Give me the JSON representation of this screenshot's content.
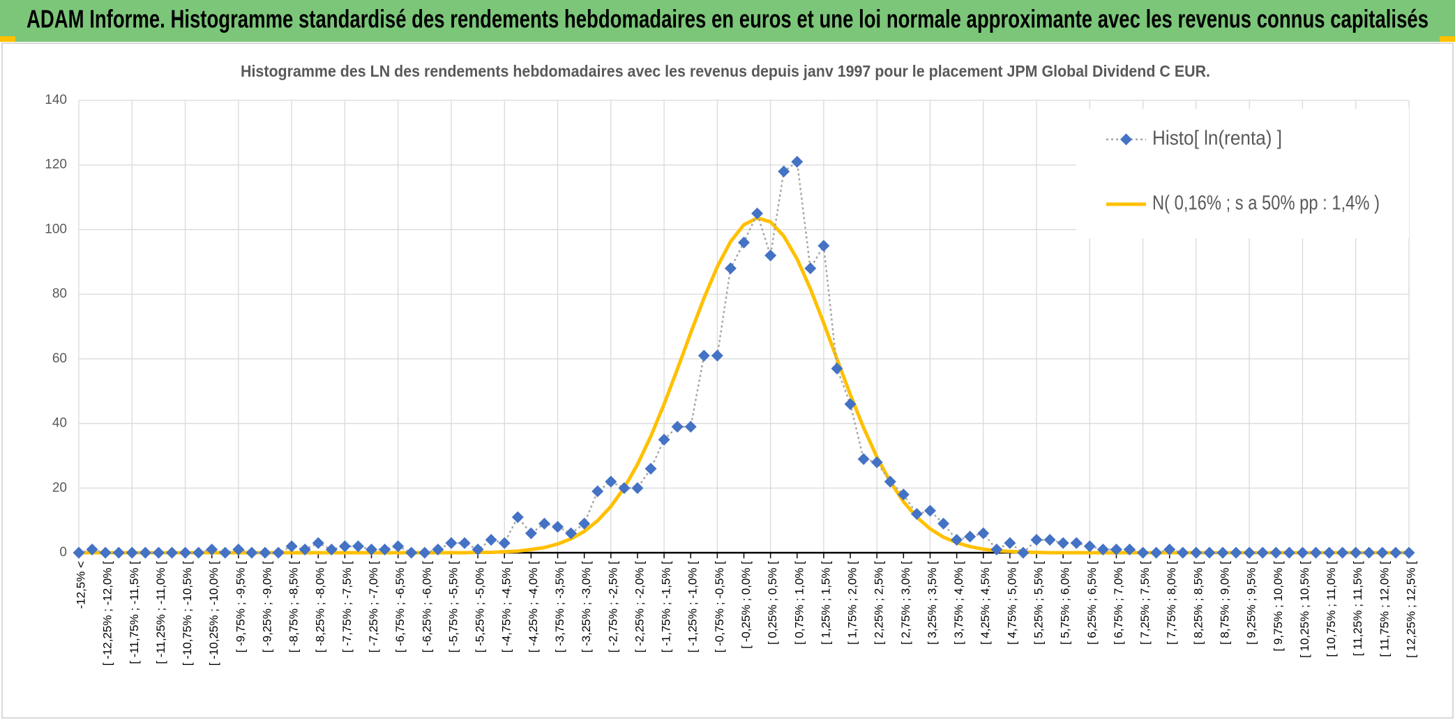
{
  "header": {
    "title": "ADAM Informe. Histogramme standardisé des rendements hebdomadaires en euros et une loi normale approximante avec les revenus connus capitalisés"
  },
  "chart_data": {
    "type": "line",
    "title": "Histogramme des LN des rendements hebdomadaires avec les revenus depuis janv 1997 pour le placement JPM Global Dividend C EUR.",
    "categories": [
      "-12,5% <",
      null,
      "[ -12,25% ; -12,0% [",
      null,
      "[ -11,75% ; -11,5% [",
      null,
      "[ -11,25% ; -11,0% [",
      null,
      "[ -10,75% ; -10,5% [",
      null,
      "[ -10,25% ; -10,0% [",
      null,
      "[ -9,75% ; -9,5% [",
      null,
      "[ -9,25% ; -9,0% [",
      null,
      "[ -8,75% ; -8,5% [",
      null,
      "[ -8,25% ; -8,0% [",
      null,
      "[ -7,75% ; -7,5% [",
      null,
      "[ -7,25% ; -7,0% [",
      null,
      "[ -6,75% ; -6,5% [",
      null,
      "[ -6,25% ; -6,0% [",
      null,
      "[ -5,75% ; -5,5% [",
      null,
      "[ -5,25% ; -5,0% [",
      null,
      "[ -4,75% ; -4,5% [",
      null,
      "[ -4,25% ; -4,0% [",
      null,
      "[ -3,75% ; -3,5% [",
      null,
      "[ -3,25% ; -3,0% [",
      null,
      "[ -2,75% ; -2,5% [",
      null,
      "[ -2,25% ; -2,0% [",
      null,
      "[ -1,75% ; -1,5% [",
      null,
      "[ -1,25% ; -1,0% [",
      null,
      "[ -0,75% ; -0,5% [",
      null,
      "[ -0,25% ; 0,0% [",
      null,
      "[ 0,25% ; 0,5% [",
      null,
      "[ 0,75% ; 1,0% [",
      null,
      "[ 1,25% ; 1,5% [",
      null,
      "[ 1,75% ; 2,0% [",
      null,
      "[ 2,25% ; 2,5% [",
      null,
      "[ 2,75% ; 3,0% [",
      null,
      "[ 3,25% ; 3,5% [",
      null,
      "[ 3,75% ; 4,0% [",
      null,
      "[ 4,25% ; 4,5% [",
      null,
      "[ 4,75% ; 5,0% [",
      null,
      "[ 5,25% ; 5,5% [",
      null,
      "[ 5,75% ; 6,0% [",
      null,
      "[ 6,25% ; 6,5% [",
      null,
      "[ 6,75% ; 7,0% [",
      null,
      "[ 7,25% ; 7,5% [",
      null,
      "[ 7,75% ; 8,0% [",
      null,
      "[ 8,25% ; 8,5% [",
      null,
      "[ 8,75% ; 9,0% [",
      null,
      "[ 9,25% ; 9,5% [",
      null,
      "[ 9,75% ; 10,0% [",
      null,
      "[ 10,25% ; 10,5% [",
      null,
      "[ 10,75% ; 11,0% [",
      null,
      "[ 11,25% ; 11,5% [",
      null,
      "[ 11,75% ; 12,0% [",
      null,
      "[ 12,25% ; 12,5% ["
    ],
    "series": [
      {
        "name": "Histo[ ln(renta) ]",
        "color": "#4472c4",
        "line_color": "#a5a5a5",
        "marker": "diamond",
        "values": [
          0,
          1,
          0,
          0,
          0,
          0,
          0,
          0,
          0,
          0,
          1,
          0,
          1,
          0,
          0,
          0,
          2,
          1,
          3,
          1,
          2,
          2,
          1,
          1,
          2,
          0,
          0,
          1,
          3,
          3,
          1,
          4,
          3,
          11,
          6,
          9,
          8,
          6,
          9,
          19,
          22,
          20,
          20,
          26,
          35,
          39,
          39,
          61,
          61,
          88,
          96,
          105,
          92,
          118,
          121,
          88,
          95,
          57,
          46,
          29,
          28,
          22,
          18,
          12,
          13,
          9,
          4,
          5,
          6,
          1,
          3,
          0,
          4,
          4,
          3,
          3,
          2,
          1,
          1,
          1,
          0,
          0,
          1,
          0,
          0,
          0,
          0,
          0,
          0,
          0,
          0,
          0,
          0,
          0,
          0,
          0,
          0,
          0,
          0,
          0,
          0
        ]
      },
      {
        "name": "N( 0,16% ; s a 50% pp : 1,4% )",
        "color": "#ffc000",
        "values": [
          0,
          0,
          0,
          0,
          0,
          0,
          0,
          0,
          0,
          0,
          0,
          0,
          0,
          0,
          0,
          0,
          0,
          0,
          0,
          0,
          0,
          0,
          0,
          0,
          0,
          0,
          0,
          0,
          0,
          0,
          0.1,
          0.1,
          0.3,
          0.5,
          1.0,
          1.6,
          2.7,
          4.3,
          6.6,
          9.9,
          14.3,
          20.1,
          27.3,
          36.0,
          46.0,
          56.8,
          68.0,
          78.8,
          88.5,
          96.3,
          101.5,
          103.6,
          102.4,
          98.0,
          90.9,
          81.7,
          71.1,
          59.9,
          48.9,
          38.7,
          29.6,
          22.0,
          15.8,
          11.0,
          7.4,
          4.8,
          3.1,
          1.9,
          1.1,
          0.6,
          0.4,
          0.2,
          0.1,
          0,
          0,
          0,
          0,
          0,
          0,
          0,
          0,
          0,
          0,
          0,
          0,
          0,
          0,
          0,
          0,
          0,
          0,
          0,
          0,
          0,
          0,
          0,
          0,
          0,
          0,
          0,
          0
        ]
      }
    ],
    "ylim": [
      0,
      140
    ],
    "yticks": [
      0,
      20,
      40,
      60,
      80,
      100,
      120,
      140
    ],
    "grid": true,
    "legend": "upper right"
  }
}
